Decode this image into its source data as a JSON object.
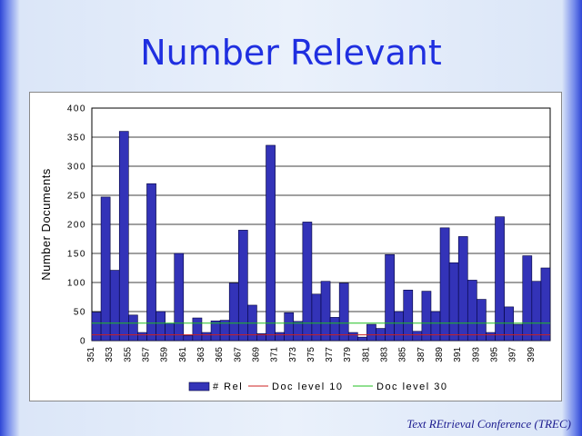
{
  "slide": {
    "title": "Number Relevant",
    "footer": "Text REtrieval Conference (TREC)"
  },
  "colors": {
    "bar_fill": "#3333b8",
    "bar_stroke": "#00003a",
    "doc10_line": "#cc2020",
    "doc30_line": "#20c020",
    "title_color": "#1f2fe0"
  },
  "chart_data": {
    "type": "bar",
    "ylabel": "Number Documents",
    "xlabel": "",
    "ylim": [
      0,
      400
    ],
    "yticks": [
      "0",
      "50",
      "100",
      "150",
      "200",
      "250",
      "300",
      "350",
      "400"
    ],
    "categories": [
      "351",
      "352",
      "353",
      "354",
      "355",
      "356",
      "357",
      "358",
      "359",
      "360",
      "361",
      "362",
      "363",
      "364",
      "365",
      "366",
      "367",
      "368",
      "369",
      "370",
      "371",
      "372",
      "373",
      "374",
      "375",
      "376",
      "377",
      "378",
      "379",
      "380",
      "381",
      "382",
      "383",
      "384",
      "385",
      "386",
      "387",
      "388",
      "389",
      "390",
      "391",
      "392",
      "393",
      "394",
      "395",
      "396",
      "397",
      "398",
      "399",
      "400"
    ],
    "x_tick_labels": [
      "351",
      "353",
      "355",
      "357",
      "359",
      "361",
      "363",
      "365",
      "367",
      "369",
      "371",
      "373",
      "375",
      "377",
      "379",
      "381",
      "383",
      "385",
      "387",
      "389",
      "391",
      "393",
      "395",
      "397",
      "399"
    ],
    "series": [
      {
        "name": "# Rel",
        "type": "bar",
        "values": [
          49,
          247,
          121,
          360,
          44,
          14,
          270,
          50,
          30,
          150,
          9,
          39,
          14,
          34,
          35,
          99,
          190,
          61,
          12,
          336,
          14,
          48,
          33,
          204,
          80,
          102,
          40,
          99,
          14,
          6,
          28,
          21,
          148,
          50,
          87,
          16,
          85,
          50,
          194,
          134,
          179,
          104,
          71,
          14,
          213,
          58,
          28,
          146,
          102,
          125
        ]
      },
      {
        "name": "Doc level 10",
        "type": "line",
        "value": 10
      },
      {
        "name": "Doc level 30",
        "type": "line",
        "value": 30
      }
    ],
    "legend": {
      "position": "bottom",
      "entries": [
        "# Rel",
        "Doc level 10",
        "Doc level 30"
      ]
    },
    "grid": true
  }
}
